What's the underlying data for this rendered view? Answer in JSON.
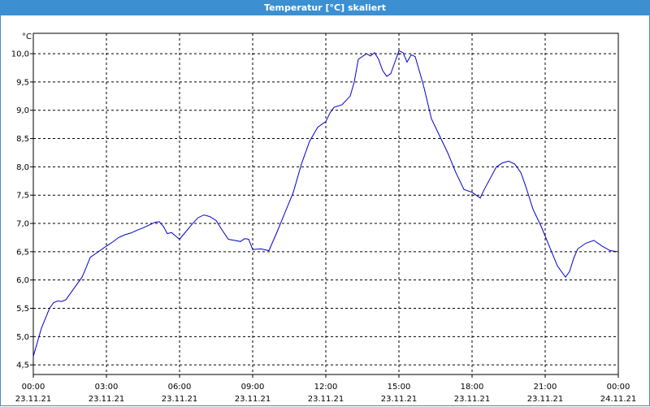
{
  "window": {
    "title": "Temperatur [°C] skaliert"
  },
  "colors": {
    "titlebar": "#3c8fd0",
    "line": "#0000cc",
    "grid": "#000000"
  },
  "chart_data": {
    "type": "line",
    "title": "Temperatur [°C] skaliert",
    "ylabel": "°C",
    "xlabel": "",
    "ylim": [
      4.33,
      10.36
    ],
    "xlim": [
      "23.11.21 00:00",
      "24.11.21 00:00"
    ],
    "grid": true,
    "y_ticks": [
      "4,5",
      "5,0",
      "5,5",
      "6,0",
      "6,5",
      "7,0",
      "7,5",
      "8,0",
      "8,5",
      "9,0",
      "9,5",
      "10,0"
    ],
    "y_tick_values": [
      4.5,
      5.0,
      5.5,
      6.0,
      6.5,
      7.0,
      7.5,
      8.0,
      8.5,
      9.0,
      9.5,
      10.0
    ],
    "x_ticks": [
      {
        "time": "00:00",
        "date": "23.11.21"
      },
      {
        "time": "03:00",
        "date": "23.11.21"
      },
      {
        "time": "06:00",
        "date": "23.11.21"
      },
      {
        "time": "09:00",
        "date": "23.11.21"
      },
      {
        "time": "12:00",
        "date": "23.11.21"
      },
      {
        "time": "15:00",
        "date": "23.11.21"
      },
      {
        "time": "18:00",
        "date": "23.11.21"
      },
      {
        "time": "21:00",
        "date": "23.11.21"
      },
      {
        "time": "00:00",
        "date": "24.11.21"
      }
    ],
    "series": [
      {
        "x": [
          "00:00",
          "00:20",
          "00:40",
          "00:50",
          "01:00",
          "01:10",
          "01:20",
          "01:40",
          "02:00",
          "02:10",
          "02:20",
          "02:40",
          "03:00",
          "03:15",
          "03:30",
          "03:45",
          "04:00",
          "04:15",
          "04:30",
          "04:45",
          "05:00",
          "05:10",
          "05:20",
          "05:30",
          "05:40",
          "05:50",
          "06:00",
          "06:15",
          "06:30",
          "06:45",
          "07:00",
          "07:15",
          "07:30",
          "07:45",
          "08:00",
          "08:15",
          "08:30",
          "08:40",
          "08:50",
          "09:00",
          "09:20",
          "09:40",
          "10:00",
          "10:20",
          "10:40",
          "11:00",
          "11:20",
          "11:40",
          "12:00",
          "12:10",
          "12:20",
          "12:40",
          "13:00",
          "13:10",
          "13:20",
          "13:40",
          "13:50",
          "14:00",
          "14:10",
          "14:20",
          "14:30",
          "14:40",
          "14:50",
          "15:00",
          "15:10",
          "15:20",
          "15:30",
          "15:40",
          "15:50",
          "16:00",
          "16:10",
          "16:20",
          "16:40",
          "17:00",
          "17:20",
          "17:40",
          "18:00",
          "18:20",
          "18:30",
          "18:45",
          "19:00",
          "19:15",
          "19:30",
          "19:45",
          "20:00",
          "20:10",
          "20:20",
          "20:30",
          "20:50",
          "21:10",
          "21:30",
          "21:50",
          "22:00",
          "22:10",
          "22:20",
          "22:40",
          "23:00",
          "23:20",
          "23:40",
          "23:59"
        ],
        "y": [
          4.65,
          5.15,
          5.5,
          5.6,
          5.63,
          5.62,
          5.65,
          5.85,
          6.05,
          6.22,
          6.4,
          6.5,
          6.6,
          6.67,
          6.75,
          6.8,
          6.83,
          6.88,
          6.92,
          6.97,
          7.02,
          7.03,
          6.95,
          6.82,
          6.84,
          6.78,
          6.72,
          6.85,
          6.98,
          7.1,
          7.15,
          7.12,
          7.05,
          6.88,
          6.72,
          6.7,
          6.68,
          6.73,
          6.72,
          6.54,
          6.55,
          6.52,
          6.85,
          7.2,
          7.55,
          8.05,
          8.45,
          8.7,
          8.8,
          8.95,
          9.05,
          9.1,
          9.25,
          9.5,
          9.9,
          10.0,
          9.96,
          10.02,
          9.9,
          9.7,
          9.6,
          9.65,
          9.85,
          10.05,
          10.02,
          9.85,
          9.98,
          9.95,
          9.7,
          9.45,
          9.15,
          8.85,
          8.55,
          8.25,
          7.9,
          7.6,
          7.55,
          7.45,
          7.6,
          7.8,
          8.0,
          8.07,
          8.1,
          8.05,
          7.9,
          7.7,
          7.48,
          7.25,
          6.95,
          6.6,
          6.25,
          6.05,
          6.15,
          6.38,
          6.55,
          6.65,
          6.7,
          6.6,
          6.52,
          6.5
        ]
      }
    ]
  }
}
